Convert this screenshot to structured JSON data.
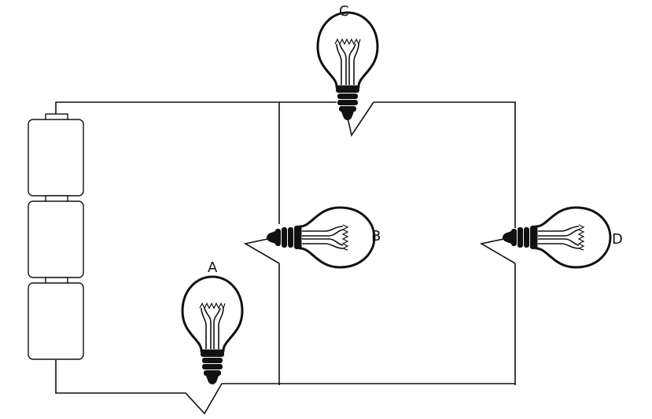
{
  "labels": {
    "bulb_a": "A",
    "bulb_b": "B",
    "bulb_c": "C",
    "bulb_d": "D"
  },
  "battery": {
    "cells": 3
  },
  "colors": {
    "line": "#111111",
    "background": "#ffffff"
  }
}
